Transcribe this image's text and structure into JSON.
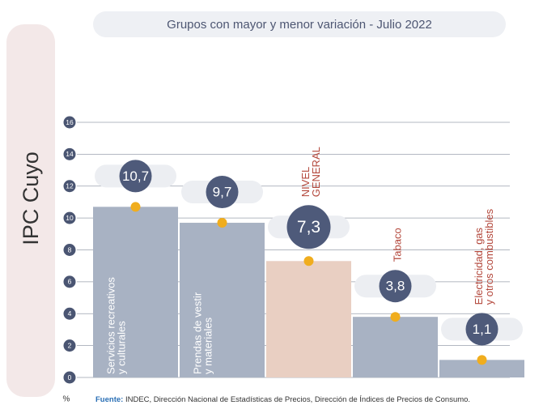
{
  "chart_data": {
    "type": "bar",
    "side_title": "IPC Cuyo",
    "title": "Grupos con mayor y menor variación - Julio 2022",
    "categories": [
      [
        "Servicios recreativos",
        "y culturales"
      ],
      [
        "Prendas de vestir",
        "y materiales"
      ],
      [
        "NIVEL",
        "GENERAL"
      ],
      [
        "Tabaco"
      ],
      [
        "Electricidad, gas",
        "y otros combustibles"
      ]
    ],
    "values": [
      10.7,
      9.7,
      7.3,
      3.8,
      1.1
    ],
    "value_labels": [
      "10,7",
      "9,7",
      "7,3",
      "3,8",
      "1,1"
    ],
    "colors": [
      "#a8b2c3",
      "#a8b2c3",
      "#e9cfc2",
      "#a8b2c3",
      "#a8b2c3"
    ],
    "ylim": [
      0,
      16
    ],
    "yticks": [
      0,
      2,
      4,
      6,
      8,
      10,
      12,
      14,
      16
    ],
    "grid": true,
    "y_unit": "%",
    "source_label": "Fuente:",
    "source": "INDEC, Dirección Nacional de Estadísticas de Precios, Dirección de Índices de Precios de Consumo."
  }
}
